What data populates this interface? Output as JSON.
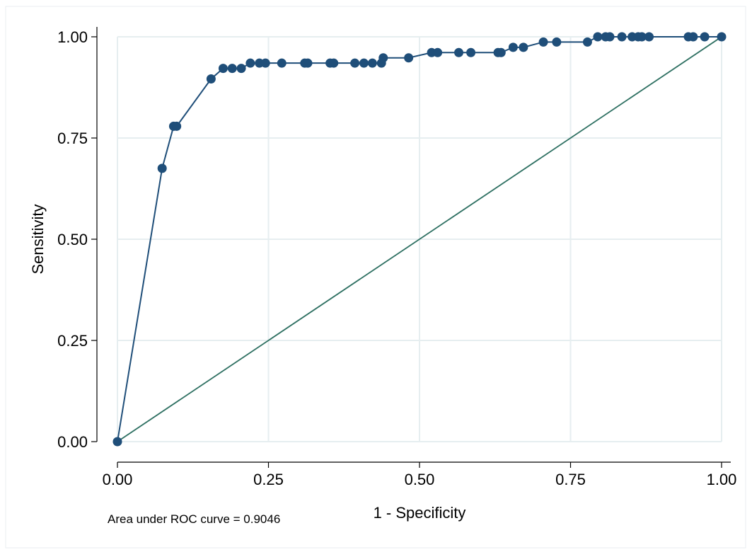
{
  "chart_data": {
    "type": "line",
    "title": "",
    "xlabel": "1 - Specificity",
    "ylabel": "Sensitivity",
    "note": "Area under ROC curve = 0.9046",
    "xlim": [
      0,
      1
    ],
    "ylim": [
      0,
      1
    ],
    "x_ticks": [
      "0.00",
      "0.25",
      "0.50",
      "0.75",
      "1.00"
    ],
    "y_ticks": [
      "0.00",
      "0.25",
      "0.50",
      "0.75",
      "1.00"
    ],
    "x_tick_values": [
      0,
      0.25,
      0.5,
      0.75,
      1
    ],
    "y_tick_values": [
      0,
      0.25,
      0.5,
      0.75,
      1
    ],
    "grid": true,
    "series": [
      {
        "color": "#1f4e79",
        "markers": true,
        "x": [
          0,
          0.074,
          0.093,
          0.098,
          0.155,
          0.175,
          0.19,
          0.205,
          0.22,
          0.235,
          0.245,
          0.272,
          0.31,
          0.315,
          0.352,
          0.358,
          0.393,
          0.408,
          0.422,
          0.437,
          0.44,
          0.482,
          0.52,
          0.53,
          0.565,
          0.585,
          0.63,
          0.635,
          0.655,
          0.672,
          0.705,
          0.727,
          0.778,
          0.795,
          0.808,
          0.815,
          0.835,
          0.852,
          0.862,
          0.868,
          0.88,
          0.945,
          0.953,
          0.972,
          1.0
        ],
        "y": [
          0,
          0.675,
          0.779,
          0.779,
          0.896,
          0.922,
          0.922,
          0.922,
          0.935,
          0.935,
          0.935,
          0.935,
          0.935,
          0.935,
          0.935,
          0.935,
          0.935,
          0.935,
          0.935,
          0.935,
          0.948,
          0.948,
          0.961,
          0.961,
          0.961,
          0.961,
          0.961,
          0.961,
          0.974,
          0.974,
          0.987,
          0.987,
          0.987,
          1.0,
          1.0,
          1.0,
          1.0,
          1.0,
          1.0,
          1.0,
          1.0,
          1.0,
          1.0,
          1.0,
          1.0
        ]
      },
      {
        "color": "#2e7062",
        "markers": false,
        "x": [
          0,
          1
        ],
        "y": [
          0,
          1
        ]
      }
    ],
    "colors": {
      "background": "#ffffff",
      "grid": "#e6eef0",
      "axis": "#000000",
      "roc": "#1f4e79",
      "reference": "#2e7062"
    }
  }
}
